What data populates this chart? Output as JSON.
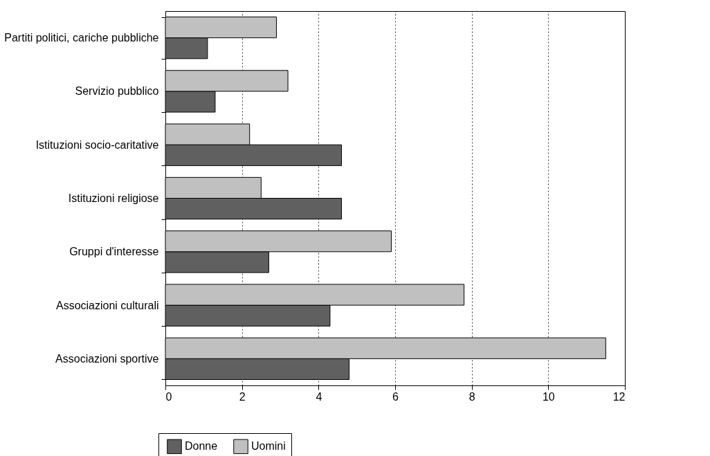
{
  "chart_data": {
    "type": "bar",
    "orientation": "horizontal",
    "categories": [
      "Partiti politici, cariche pubbliche",
      "Servizio pubblico",
      "Istituzioni socio-caritative",
      "Istituzioni religiose",
      "Gruppi d'interesse",
      "Associazioni culturali",
      "Associazioni sportive"
    ],
    "series": [
      {
        "name": "Donne",
        "color": "#606060",
        "values": [
          1.1,
          1.3,
          4.6,
          4.6,
          2.7,
          4.3,
          4.8
        ]
      },
      {
        "name": "Uomini",
        "color": "#c0c0c0",
        "values": [
          2.9,
          3.2,
          2.2,
          2.5,
          5.9,
          7.8,
          11.5
        ]
      }
    ],
    "xlim": [
      0,
      12
    ],
    "xticks": [
      0,
      2,
      4,
      6,
      8,
      10,
      12
    ],
    "grid": "x",
    "legend": "bottom"
  }
}
